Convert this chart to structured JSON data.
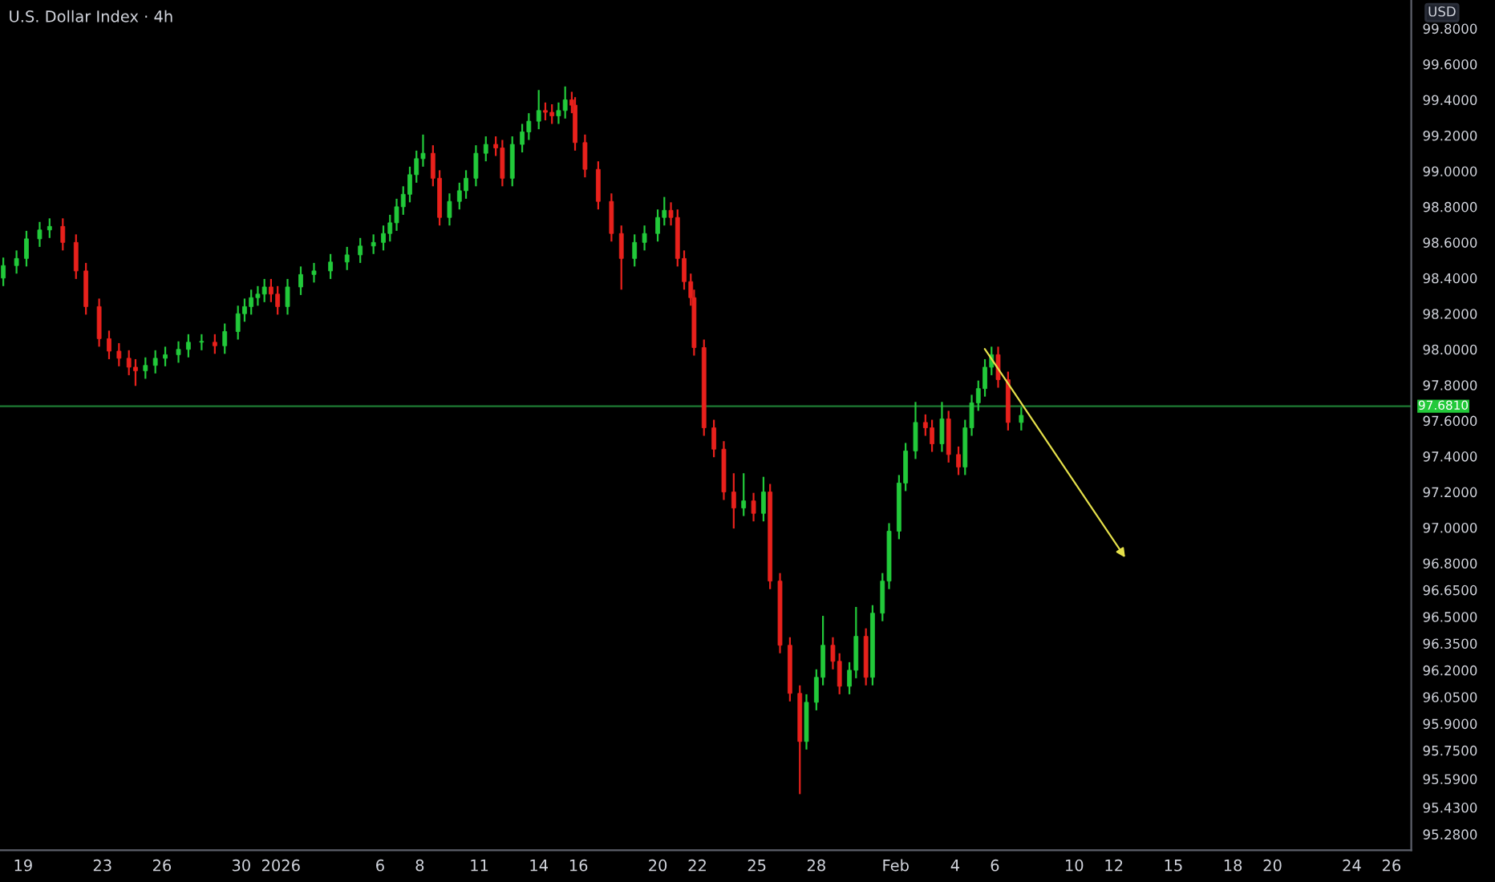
{
  "chart_data": {
    "type": "candlestick",
    "title": "U.S. Dollar Index · 4h",
    "annotations": [
      "USD"
    ],
    "colors": [
      "#22c93a",
      "#22c93a",
      "#22c93a",
      "#22c93a",
      "#22c93a",
      "#e8211c",
      "#e8211c",
      "#e8211c",
      "#e8211c",
      "#e8211c",
      "#e8211c",
      "#e8211c",
      "#e8211c",
      "#22c93a",
      "#22c93a",
      "#22c93a",
      "#22c93a",
      "#22c93a",
      "#22c93a",
      "#e8211c",
      "#22c93a",
      "#22c93a",
      "#22c93a",
      "#22c93a",
      "#22c93a",
      "#22c93a",
      "#e8211c",
      "#e8211c",
      "#22c93a",
      "#22c93a",
      "#22c93a",
      "#22c93a",
      "#22c93a",
      "#22c93a",
      "#22c93a",
      "#22c93a",
      "#22c93a",
      "#22c93a",
      "#22c93a",
      "#22c93a",
      "#22c93a",
      "#22c93a",
      "#e8211c",
      "#e8211c",
      "#22c93a",
      "#22c93a",
      "#22c93a",
      "#22c93a",
      "#22c93a",
      "#e8211c",
      "#e8211c",
      "#22c93a",
      "#22c93a",
      "#22c93a",
      "#22c93a",
      "#e8211c",
      "#e8211c",
      "#22c93a",
      "#22c93a",
      "#e8211c",
      "#e8211c",
      "#e8211c",
      "#e8211c",
      "#e8211c",
      "#e8211c",
      "#22c93a",
      "#22c93a",
      "#22c93a",
      "#22c93a",
      "#e8211c",
      "#e8211c",
      "#e8211c",
      "#e8211c",
      "#e8211c",
      "#e8211c",
      "#e8211c",
      "#e8211c",
      "#e8211c",
      "#22c93a",
      "#e8211c",
      "#22c93a",
      "#e8211c",
      "#e8211c",
      "#e8211c",
      "#e8211c",
      "#22c93a",
      "#22c93a",
      "#22c93a",
      "#e8211c",
      "#e8211c",
      "#22c93a",
      "#22c93a",
      "#e8211c",
      "#22c93a",
      "#22c93a",
      "#22c93a",
      "#22c93a",
      "#22c93a",
      "#22c93a",
      "#e8211c",
      "#e8211c",
      "#22c93a",
      "#e8211c",
      "#e8211c",
      "#22c93a",
      "#22c93a",
      "#22c93a",
      "#22c93a",
      "#22c93a",
      "#e8211c",
      "#e8211c",
      "#22c93a"
    ],
    "x": [
      "2025-12-18T00:00",
      "2025-12-18T16:00",
      "2025-12-19T04:00",
      "2025-12-19T20:00",
      "2025-12-20T08:00",
      "2025-12-21T00:00",
      "2025-12-21T16:00",
      "2025-12-22T04:00",
      "2025-12-22T20:00",
      "2025-12-23T08:00",
      "2025-12-23T20:00",
      "2025-12-24T08:00",
      "2025-12-24T16:00",
      "2025-12-25T04:00",
      "2025-12-25T16:00",
      "2025-12-26T04:00",
      "2025-12-26T20:00",
      "2025-12-27T08:00",
      "2025-12-28T00:00",
      "2025-12-28T16:00",
      "2025-12-29T04:00",
      "2025-12-29T20:00",
      "2025-12-30T04:00",
      "2025-12-30T12:00",
      "2025-12-30T20:00",
      "2025-12-31T04:00",
      "2025-12-31T12:00",
      "2025-12-31T20:00",
      "2026-01-01T08:00",
      "2026-01-02T00:00",
      "2026-01-02T16:00",
      "2026-01-03T12:00",
      "2026-01-04T08:00",
      "2026-01-05T00:00",
      "2026-01-05T16:00",
      "2026-01-06T04:00",
      "2026-01-06T12:00",
      "2026-01-06T20:00",
      "2026-01-07T04:00",
      "2026-01-07T12:00",
      "2026-01-07T20:00",
      "2026-01-08T04:00",
      "2026-01-08T16:00",
      "2026-01-09T00:00",
      "2026-01-09T12:00",
      "2026-01-10T00:00",
      "2026-01-10T08:00",
      "2026-01-10T20:00",
      "2026-01-11T08:00",
      "2026-01-11T20:00",
      "2026-01-12T04:00",
      "2026-01-12T16:00",
      "2026-01-13T04:00",
      "2026-01-13T12:00",
      "2026-01-14T00:00",
      "2026-01-14T08:00",
      "2026-01-14T16:00",
      "2026-01-15T00:00",
      "2026-01-15T08:00",
      "2026-01-15T16:00",
      "2026-01-15T20:00",
      "2026-01-16T08:00",
      "2026-01-17T00:00",
      "2026-01-17T16:00",
      "2026-01-18T04:00",
      "2026-01-18T20:00",
      "2026-01-19T08:00",
      "2026-01-20T00:00",
      "2026-01-20T08:00",
      "2026-01-20T16:00",
      "2026-01-21T00:00",
      "2026-01-21T08:00",
      "2026-01-21T16:00",
      "2026-01-21T20:00",
      "2026-01-22T08:00",
      "2026-01-22T20:00",
      "2026-01-23T08:00",
      "2026-01-23T20:00",
      "2026-01-24T08:00",
      "2026-01-24T20:00",
      "2026-01-25T08:00",
      "2026-01-25T16:00",
      "2026-01-26T04:00",
      "2026-01-26T16:00",
      "2026-01-27T04:00",
      "2026-01-27T12:00",
      "2026-01-28T00:00",
      "2026-01-28T08:00",
      "2026-01-28T20:00",
      "2026-01-29T04:00",
      "2026-01-29T16:00",
      "2026-01-30T00:00",
      "2026-01-30T12:00",
      "2026-01-30T20:00",
      "2026-01-31T08:00",
      "2026-01-31T16:00",
      "2026-02-01T04:00",
      "2026-02-01T12:00",
      "2026-02-02T00:00",
      "2026-02-02T12:00",
      "2026-02-02T20:00",
      "2026-02-03T08:00",
      "2026-02-03T16:00",
      "2026-02-04T04:00",
      "2026-02-04T12:00",
      "2026-02-04T20:00",
      "2026-02-05T04:00",
      "2026-02-05T12:00",
      "2026-02-05T20:00",
      "2026-02-06T04:00",
      "2026-02-06T16:00",
      "2026-02-07T08:00"
    ],
    "ohlc": [
      [
        98.4,
        98.51,
        98.36,
        98.47
      ],
      [
        98.47,
        98.55,
        98.43,
        98.51
      ],
      [
        98.51,
        98.66,
        98.47,
        98.62
      ],
      [
        98.62,
        98.71,
        98.58,
        98.67
      ],
      [
        98.67,
        98.73,
        98.63,
        98.69
      ],
      [
        98.69,
        98.73,
        98.56,
        98.6
      ],
      [
        98.6,
        98.64,
        98.4,
        98.44
      ],
      [
        98.44,
        98.48,
        98.2,
        98.24
      ],
      [
        98.24,
        98.28,
        98.02,
        98.06
      ],
      [
        98.06,
        98.1,
        97.95,
        97.99
      ],
      [
        97.99,
        98.03,
        97.91,
        97.95
      ],
      [
        97.95,
        97.99,
        97.86,
        97.9
      ],
      [
        97.9,
        97.94,
        97.8,
        97.88
      ],
      [
        97.88,
        97.95,
        97.84,
        97.91
      ],
      [
        97.91,
        97.99,
        97.87,
        97.95
      ],
      [
        97.95,
        98.01,
        97.91,
        97.97
      ],
      [
        97.97,
        98.04,
        97.93,
        98.0
      ],
      [
        98.0,
        98.08,
        97.96,
        98.04
      ],
      [
        98.04,
        98.08,
        98.0,
        98.04
      ],
      [
        98.04,
        98.08,
        97.98,
        98.02
      ],
      [
        98.02,
        98.14,
        97.98,
        98.1
      ],
      [
        98.1,
        98.24,
        98.06,
        98.2
      ],
      [
        98.2,
        98.28,
        98.16,
        98.24
      ],
      [
        98.24,
        98.33,
        98.2,
        98.29
      ],
      [
        98.29,
        98.35,
        98.25,
        98.31
      ],
      [
        98.31,
        98.39,
        98.27,
        98.35
      ],
      [
        98.35,
        98.39,
        98.27,
        98.31
      ],
      [
        98.31,
        98.35,
        98.2,
        98.24
      ],
      [
        98.24,
        98.39,
        98.2,
        98.35
      ],
      [
        98.35,
        98.46,
        98.31,
        98.42
      ],
      [
        98.42,
        98.48,
        98.38,
        98.44
      ],
      [
        98.44,
        98.53,
        98.4,
        98.49
      ],
      [
        98.49,
        98.57,
        98.45,
        98.53
      ],
      [
        98.53,
        98.62,
        98.49,
        98.58
      ],
      [
        98.58,
        98.64,
        98.54,
        98.6
      ],
      [
        98.6,
        98.69,
        98.56,
        98.65
      ],
      [
        98.65,
        98.75,
        98.61,
        98.71
      ],
      [
        98.71,
        98.84,
        98.67,
        98.8
      ],
      [
        98.8,
        98.91,
        98.76,
        98.87
      ],
      [
        98.87,
        99.02,
        98.83,
        98.98
      ],
      [
        98.98,
        99.11,
        98.94,
        99.07
      ],
      [
        99.07,
        99.2,
        99.03,
        99.1
      ],
      [
        99.1,
        99.14,
        98.92,
        98.96
      ],
      [
        98.96,
        99.0,
        98.7,
        98.74
      ],
      [
        98.74,
        98.87,
        98.7,
        98.83
      ],
      [
        98.83,
        98.93,
        98.79,
        98.89
      ],
      [
        98.89,
        99.0,
        98.85,
        98.96
      ],
      [
        98.96,
        99.14,
        98.92,
        99.1
      ],
      [
        99.1,
        99.19,
        99.06,
        99.15
      ],
      [
        99.15,
        99.19,
        99.09,
        99.13
      ],
      [
        99.13,
        99.17,
        98.92,
        98.96
      ],
      [
        98.96,
        99.19,
        98.92,
        99.15
      ],
      [
        99.15,
        99.26,
        99.11,
        99.22
      ],
      [
        99.22,
        99.32,
        99.18,
        99.28
      ],
      [
        99.28,
        99.45,
        99.24,
        99.34
      ],
      [
        99.34,
        99.38,
        99.29,
        99.33
      ],
      [
        99.33,
        99.37,
        99.27,
        99.31
      ],
      [
        99.31,
        99.38,
        99.27,
        99.34
      ],
      [
        99.34,
        99.47,
        99.3,
        99.4
      ],
      [
        99.4,
        99.44,
        99.33,
        99.37
      ],
      [
        99.37,
        99.41,
        99.12,
        99.16
      ],
      [
        99.16,
        99.2,
        98.97,
        99.01
      ],
      [
        99.01,
        99.05,
        98.79,
        98.83
      ],
      [
        98.83,
        98.87,
        98.61,
        98.65
      ],
      [
        98.65,
        98.69,
        98.34,
        98.51
      ],
      [
        98.51,
        98.64,
        98.47,
        98.6
      ],
      [
        98.6,
        98.69,
        98.56,
        98.65
      ],
      [
        98.65,
        98.78,
        98.61,
        98.74
      ],
      [
        98.74,
        98.85,
        98.7,
        98.78
      ],
      [
        98.78,
        98.82,
        98.7,
        98.74
      ],
      [
        98.74,
        98.78,
        98.47,
        98.51
      ],
      [
        98.51,
        98.55,
        98.34,
        98.38
      ],
      [
        98.38,
        98.42,
        98.25,
        98.29
      ],
      [
        98.29,
        98.33,
        97.97,
        98.01
      ],
      [
        98.01,
        98.05,
        97.52,
        97.56
      ],
      [
        97.56,
        97.6,
        97.4,
        97.44
      ],
      [
        97.44,
        97.48,
        97.16,
        97.2
      ],
      [
        97.2,
        97.3,
        97.0,
        97.11
      ],
      [
        97.11,
        97.3,
        97.07,
        97.15
      ],
      [
        97.15,
        97.19,
        97.04,
        97.08
      ],
      [
        97.08,
        97.28,
        97.04,
        97.2
      ],
      [
        97.2,
        97.24,
        96.66,
        96.7
      ],
      [
        96.7,
        96.74,
        96.3,
        96.34
      ],
      [
        96.34,
        96.38,
        96.03,
        96.07
      ],
      [
        96.07,
        96.11,
        95.51,
        95.8
      ],
      [
        95.8,
        96.06,
        95.76,
        96.02
      ],
      [
        96.02,
        96.2,
        95.98,
        96.16
      ],
      [
        96.16,
        96.5,
        96.12,
        96.34
      ],
      [
        96.34,
        96.38,
        96.21,
        96.25
      ],
      [
        96.25,
        96.29,
        96.07,
        96.11
      ],
      [
        96.11,
        96.24,
        96.07,
        96.2
      ],
      [
        96.2,
        96.55,
        96.16,
        96.39
      ],
      [
        96.39,
        96.43,
        96.12,
        96.16
      ],
      [
        96.16,
        96.56,
        96.12,
        96.52
      ],
      [
        96.52,
        96.74,
        96.48,
        96.7
      ],
      [
        96.7,
        97.02,
        96.66,
        96.98
      ],
      [
        96.98,
        97.29,
        96.94,
        97.25
      ],
      [
        97.25,
        97.47,
        97.21,
        97.43
      ],
      [
        97.43,
        97.7,
        97.39,
        97.59
      ],
      [
        97.59,
        97.63,
        97.52,
        97.56
      ],
      [
        97.56,
        97.6,
        97.43,
        97.47
      ],
      [
        97.47,
        97.7,
        97.43,
        97.61
      ],
      [
        97.61,
        97.65,
        97.37,
        97.41
      ],
      [
        97.41,
        97.45,
        97.3,
        97.34
      ],
      [
        97.34,
        97.6,
        97.3,
        97.56
      ],
      [
        97.56,
        97.74,
        97.52,
        97.7
      ],
      [
        97.7,
        97.82,
        97.66,
        97.78
      ],
      [
        97.78,
        97.94,
        97.74,
        97.9
      ],
      [
        97.9,
        98.01,
        97.86,
        97.97
      ],
      [
        97.97,
        98.01,
        97.79,
        97.83
      ],
      [
        97.83,
        97.87,
        97.55,
        97.59
      ],
      [
        97.59,
        97.67,
        97.55,
        97.63
      ]
    ],
    "xlim": [
      "2025-12-17T20:00",
      "2026-02-27T00:00"
    ],
    "xticks": [
      {
        "value": "2025-12-19",
        "label": "19"
      },
      {
        "value": "2025-12-23",
        "label": "23"
      },
      {
        "value": "2025-12-26",
        "label": "26"
      },
      {
        "value": "2025-12-30",
        "label": "30"
      },
      {
        "value": "2026-01-01",
        "label": "2026"
      },
      {
        "value": "2026-01-06",
        "label": "6"
      },
      {
        "value": "2026-01-08",
        "label": "8"
      },
      {
        "value": "2026-01-11",
        "label": "11"
      },
      {
        "value": "2026-01-14",
        "label": "14"
      },
      {
        "value": "2026-01-16",
        "label": "16"
      },
      {
        "value": "2026-01-20",
        "label": "20"
      },
      {
        "value": "2026-01-22",
        "label": "22"
      },
      {
        "value": "2026-01-25",
        "label": "25"
      },
      {
        "value": "2026-01-28",
        "label": "28"
      },
      {
        "value": "2026-02-01",
        "label": "Feb"
      },
      {
        "value": "2026-02-04",
        "label": "4"
      },
      {
        "value": "2026-02-06",
        "label": "6"
      },
      {
        "value": "2026-02-10",
        "label": "10"
      },
      {
        "value": "2026-02-12",
        "label": "12"
      },
      {
        "value": "2026-02-15",
        "label": "15"
      },
      {
        "value": "2026-02-18",
        "label": "18"
      },
      {
        "value": "2026-02-20",
        "label": "20"
      },
      {
        "value": "2026-02-24",
        "label": "24"
      },
      {
        "value": "2026-02-26",
        "label": "26"
      }
    ],
    "ylim": [
      95.19,
      99.96
    ],
    "yticks": [
      {
        "value": 95.28,
        "label": "95.2800"
      },
      {
        "value": 95.43,
        "label": "95.4300"
      },
      {
        "value": 95.59,
        "label": "95.5900"
      },
      {
        "value": 95.75,
        "label": "95.7500"
      },
      {
        "value": 95.9,
        "label": "95.9000"
      },
      {
        "value": 96.05,
        "label": "96.0500"
      },
      {
        "value": 96.2,
        "label": "96.2000"
      },
      {
        "value": 96.35,
        "label": "96.3500"
      },
      {
        "value": 96.5,
        "label": "96.5000"
      },
      {
        "value": 96.65,
        "label": "96.6500"
      },
      {
        "value": 96.8,
        "label": "96.8000"
      },
      {
        "value": 97.0,
        "label": "97.0000"
      },
      {
        "value": 97.2,
        "label": "97.2000"
      },
      {
        "value": 97.4,
        "label": "97.4000"
      },
      {
        "value": 97.6,
        "label": "97.6000"
      },
      {
        "value": 97.8,
        "label": "97.8000"
      },
      {
        "value": 98.0,
        "label": "98.0000"
      },
      {
        "value": 98.2,
        "label": "98.2000"
      },
      {
        "value": 98.4,
        "label": "98.4000"
      },
      {
        "value": 98.6,
        "label": "98.6000"
      },
      {
        "value": 98.8,
        "label": "98.8000"
      },
      {
        "value": 99.0,
        "label": "99.0000"
      },
      {
        "value": 99.2,
        "label": "99.2000"
      },
      {
        "value": 99.4,
        "label": "99.4000"
      },
      {
        "value": 99.6,
        "label": "99.6000"
      },
      {
        "value": 99.8,
        "label": "99.8000"
      }
    ],
    "ref_lines": [
      {
        "axis": "y",
        "value": 97.681,
        "label": "97.6810",
        "color": "#1e7a33"
      }
    ],
    "grid": false
  }
}
